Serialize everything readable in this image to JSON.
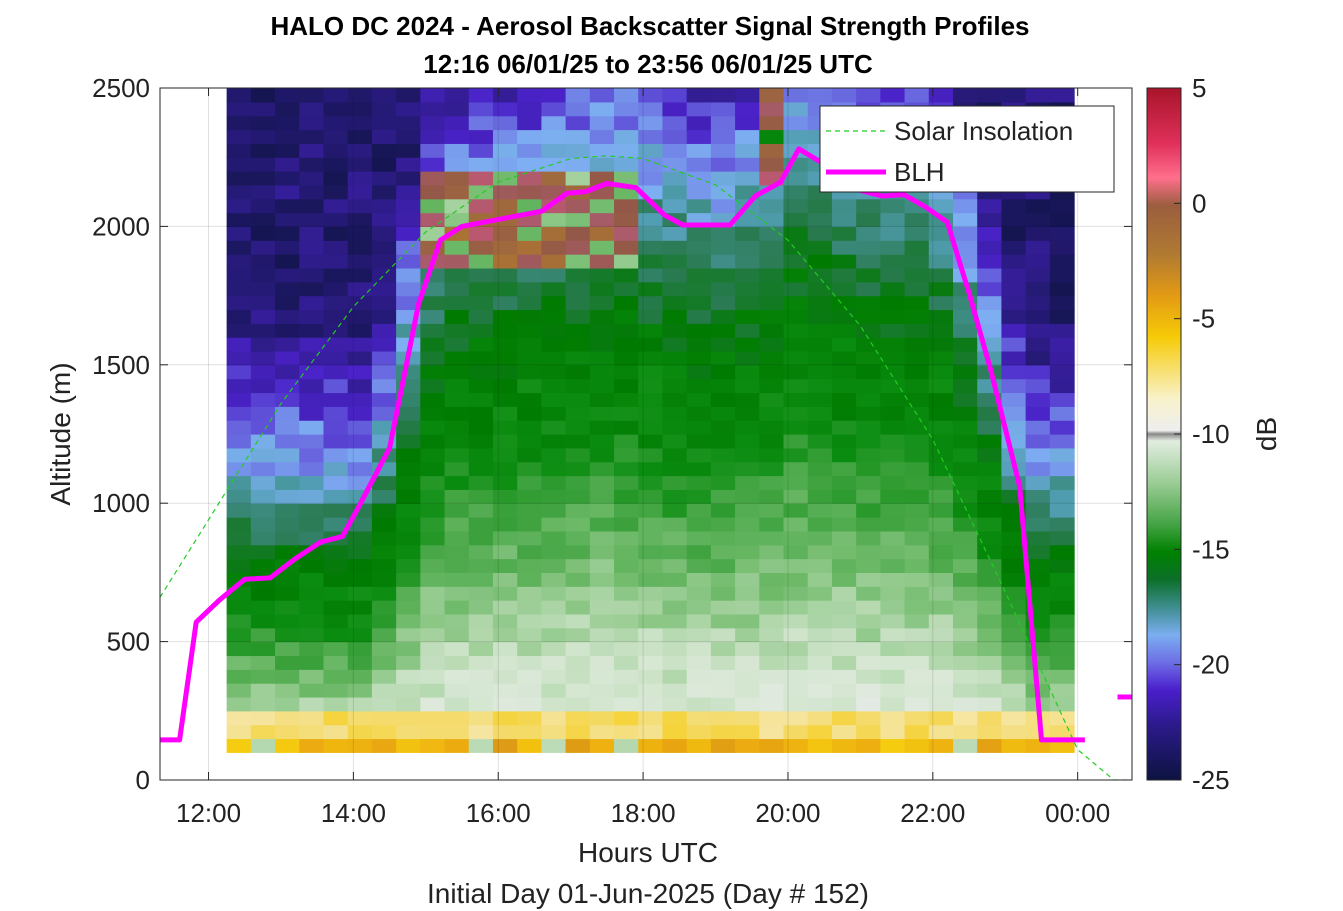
{
  "chart_data": {
    "type": "heatmap",
    "title": "HALO DC 2024 - Aerosol Backscatter Signal Strength Profiles",
    "subtitle": "12:16 06/01/25 to 23:56 06/01/25  UTC",
    "xlabel": "Hours UTC",
    "xlabel2": "Initial Day 01-Jun-2025 (Day # 152)",
    "ylabel": "Altitude (m)",
    "colorbar_label": "dB",
    "xlim": [
      11.33,
      24.75
    ],
    "ylim": [
      0,
      2500
    ],
    "x_ticks": [
      12,
      14,
      16,
      18,
      20,
      22,
      24
    ],
    "x_tick_labels": [
      "12:00",
      "14:00",
      "16:00",
      "18:00",
      "20:00",
      "22:00",
      "00:00"
    ],
    "y_ticks": [
      0,
      500,
      1000,
      1500,
      2000,
      2500
    ],
    "y_tick_labels": [
      "0",
      "500",
      "1000",
      "1500",
      "2000",
      "2500"
    ],
    "clim": [
      -25,
      5
    ],
    "colorbar_ticks": [
      5,
      0,
      -5,
      -10,
      -15,
      -20,
      -25
    ],
    "colorbar_tick_labels": [
      "5",
      "0",
      "-5",
      "-10",
      "-15",
      "-20",
      "-25"
    ],
    "grid": true,
    "legend_position": "top-right",
    "heatmap": {
      "x_start": 12.25,
      "x_end": 23.95,
      "time_bins": 35,
      "y_start": 100,
      "y_end": 2500,
      "altitude_bins": 48,
      "description_of_values": "backscatter signal strength in dB: ~-8 near surface, -12 to -17 in boundary layer, -18 to -24 above; isolated -5 to 0 cells near 1900-2200 m between 15:00 and 18:00"
    },
    "series": [
      {
        "name": "Solar Insolation",
        "style": "dashed",
        "color": "#22cc22",
        "x": [
          11.33,
          12.0,
          13.0,
          14.0,
          15.0,
          16.0,
          17.0,
          17.5,
          18.0,
          19.0,
          20.0,
          21.0,
          22.0,
          23.0,
          24.0,
          24.5,
          24.75
        ],
        "y": [
          660,
          940,
          1360,
          1710,
          1980,
          2160,
          2245,
          2255,
          2245,
          2150,
          1950,
          1640,
          1230,
          680,
          110,
          0,
          0
        ]
      },
      {
        "name": "BLH",
        "style": "solid",
        "color": "#ff00ff",
        "x": [
          11.33,
          11.6,
          11.83,
          12.15,
          12.5,
          12.85,
          13.2,
          13.55,
          13.85,
          14.1,
          14.5,
          14.9,
          15.2,
          15.5,
          16.1,
          16.6,
          16.95,
          17.2,
          17.5,
          17.9,
          18.3,
          18.55,
          18.9,
          19.2,
          19.55,
          19.9,
          20.15,
          20.5,
          20.75,
          21.0,
          21.3,
          21.6,
          21.9,
          22.2,
          22.5,
          22.8,
          23.2,
          23.5,
          23.75,
          24.1
        ],
        "y": [
          145,
          145,
          570,
          650,
          725,
          730,
          800,
          860,
          880,
          1000,
          1200,
          1720,
          1950,
          2000,
          2030,
          2055,
          2120,
          2125,
          2155,
          2140,
          2040,
          2005,
          2005,
          2005,
          2110,
          2160,
          2280,
          2225,
          2185,
          2130,
          2110,
          2115,
          2070,
          2015,
          1760,
          1480,
          1060,
          145,
          145,
          145
        ]
      }
    ]
  }
}
